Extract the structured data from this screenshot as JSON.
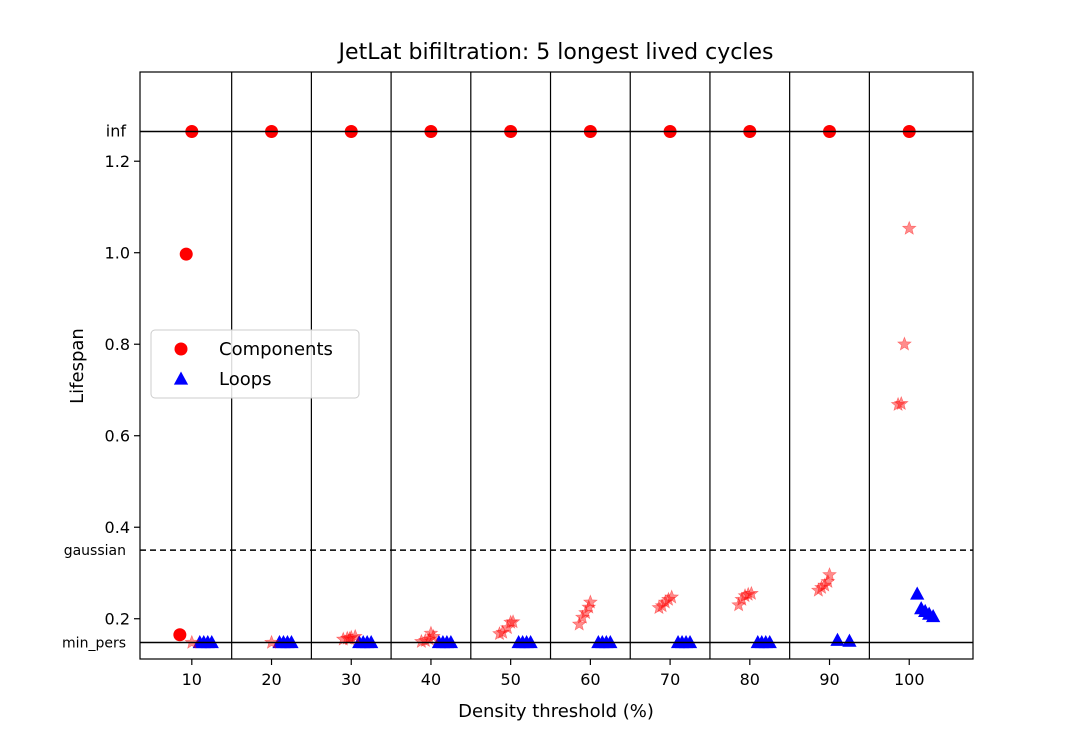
{
  "chart_data": {
    "type": "scatter",
    "title": "JetLat bifiltration: 5 longest lived cycles",
    "xlabel": "Density threshold (%)",
    "ylabel": "Lifespan",
    "xlim": [
      3.5,
      108
    ],
    "ylim": [
      0.112,
      1.395
    ],
    "x_ticks": [
      10,
      20,
      30,
      40,
      50,
      60,
      70,
      80,
      90,
      100
    ],
    "x_tick_labels": [
      "10",
      "20",
      "30",
      "40",
      "50",
      "60",
      "70",
      "80",
      "90",
      "100"
    ],
    "y_ticks": [
      0.2,
      0.4,
      0.6,
      0.8,
      1.0,
      1.2
    ],
    "y_tick_labels": [
      "0.2",
      "0.4",
      "0.6",
      "0.8",
      "1.0",
      "1.2"
    ],
    "vertical_separators": [
      15,
      25,
      35,
      45,
      55,
      65,
      75,
      85,
      95
    ],
    "reference_lines": [
      {
        "label": "inf",
        "y": 1.265,
        "style": "solid"
      },
      {
        "label": "gaussian",
        "y": 0.35,
        "style": "dashed"
      },
      {
        "label": "min_pers",
        "y": 0.148,
        "style": "solid"
      }
    ],
    "legend": {
      "placement": "center-left",
      "entries": [
        {
          "label": "Components",
          "marker": "circle",
          "color": "#ff0000"
        },
        {
          "label": "Loops",
          "marker": "triangle",
          "color": "#0000ff"
        }
      ]
    },
    "series": [
      {
        "label_ref": "Components",
        "marker": "circle",
        "color": "#ff0000",
        "points": [
          [
            10,
            1.265
          ],
          [
            20,
            1.265
          ],
          [
            30,
            1.265
          ],
          [
            40,
            1.265
          ],
          [
            50,
            1.265
          ],
          [
            60,
            1.265
          ],
          [
            70,
            1.265
          ],
          [
            80,
            1.265
          ],
          [
            90,
            1.265
          ],
          [
            100,
            1.265
          ],
          [
            9.3,
            0.997
          ],
          [
            8.5,
            0.165
          ]
        ]
      },
      {
        "label_ref": "Loops",
        "marker": "triangle",
        "color": "#0000ff",
        "points": [
          [
            11.0,
            0.148
          ],
          [
            11.5,
            0.148
          ],
          [
            12.0,
            0.148
          ],
          [
            12.5,
            0.148
          ],
          [
            21.0,
            0.148
          ],
          [
            21.5,
            0.148
          ],
          [
            22.0,
            0.148
          ],
          [
            22.5,
            0.148
          ],
          [
            31.0,
            0.148
          ],
          [
            31.5,
            0.148
          ],
          [
            32.0,
            0.148
          ],
          [
            32.5,
            0.148
          ],
          [
            41.0,
            0.148
          ],
          [
            41.5,
            0.148
          ],
          [
            42.0,
            0.148
          ],
          [
            42.5,
            0.148
          ],
          [
            51.0,
            0.148
          ],
          [
            51.5,
            0.148
          ],
          [
            52.0,
            0.148
          ],
          [
            52.5,
            0.148
          ],
          [
            61.0,
            0.148
          ],
          [
            61.5,
            0.148
          ],
          [
            62.0,
            0.148
          ],
          [
            62.5,
            0.148
          ],
          [
            71.0,
            0.148
          ],
          [
            71.5,
            0.148
          ],
          [
            72.0,
            0.148
          ],
          [
            72.5,
            0.148
          ],
          [
            81.0,
            0.148
          ],
          [
            81.5,
            0.148
          ],
          [
            82.0,
            0.148
          ],
          [
            82.5,
            0.148
          ],
          [
            91.0,
            0.153
          ],
          [
            92.5,
            0.151
          ],
          [
            101.0,
            0.254
          ],
          [
            101.5,
            0.222
          ],
          [
            102.0,
            0.216
          ],
          [
            102.5,
            0.21
          ],
          [
            103.0,
            0.205
          ]
        ]
      },
      {
        "marker": "star",
        "color": "#ff0000",
        "alpha": 0.45,
        "points": [
          [
            10.0,
            0.148
          ],
          [
            20.0,
            0.148
          ],
          [
            29.0,
            0.155
          ],
          [
            29.5,
            0.157
          ],
          [
            30.0,
            0.159
          ],
          [
            30.5,
            0.161
          ],
          [
            29.8,
            0.156
          ],
          [
            38.8,
            0.15
          ],
          [
            39.3,
            0.152
          ],
          [
            39.8,
            0.155
          ],
          [
            40.3,
            0.161
          ],
          [
            40.0,
            0.168
          ],
          [
            48.6,
            0.167
          ],
          [
            49.0,
            0.17
          ],
          [
            49.6,
            0.18
          ],
          [
            50.0,
            0.192
          ],
          [
            50.3,
            0.193
          ],
          [
            58.6,
            0.188
          ],
          [
            59.0,
            0.203
          ],
          [
            59.4,
            0.213
          ],
          [
            59.8,
            0.225
          ],
          [
            60.0,
            0.236
          ],
          [
            68.6,
            0.224
          ],
          [
            69.0,
            0.228
          ],
          [
            69.4,
            0.236
          ],
          [
            69.8,
            0.242
          ],
          [
            70.2,
            0.247
          ],
          [
            78.6,
            0.23
          ],
          [
            79.0,
            0.242
          ],
          [
            79.4,
            0.25
          ],
          [
            79.8,
            0.253
          ],
          [
            80.2,
            0.255
          ],
          [
            88.6,
            0.262
          ],
          [
            89.0,
            0.268
          ],
          [
            89.4,
            0.273
          ],
          [
            89.8,
            0.281
          ],
          [
            90.0,
            0.296
          ],
          [
            98.6,
            0.668
          ],
          [
            99.0,
            0.67
          ],
          [
            99.4,
            0.8
          ],
          [
            100.0,
            1.053
          ]
        ]
      }
    ]
  }
}
